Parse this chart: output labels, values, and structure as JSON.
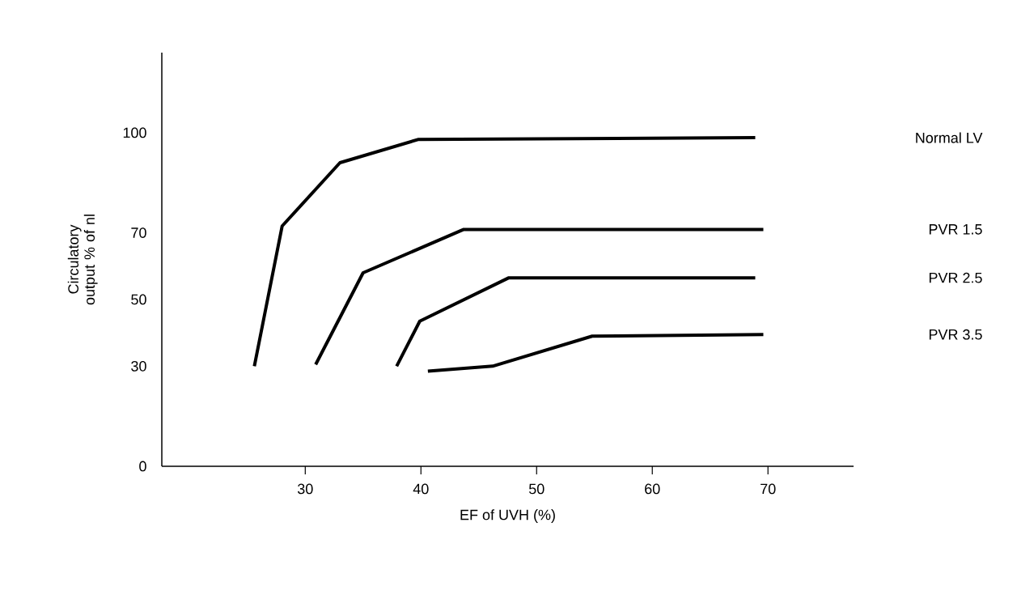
{
  "chart_data": {
    "type": "line",
    "xlabel": "EF of UVH (%)",
    "ylabel": "Circulatory output % of nl",
    "xlim": [
      17.6,
      77.4
    ],
    "ylim": [
      0,
      124
    ],
    "xticks": [
      30,
      40,
      50,
      60,
      70
    ],
    "yticks": [
      0,
      30,
      50,
      70,
      100
    ],
    "series": [
      {
        "name": "Normal LV",
        "color": "#000000",
        "x": [
          25.6,
          28,
          33,
          39.8,
          68.9
        ],
        "values": [
          30,
          72,
          91,
          98,
          98.5
        ]
      },
      {
        "name": "PVR 1.5",
        "color": "#000000",
        "x": [
          30.9,
          35,
          43.7,
          69.6
        ],
        "values": [
          30.5,
          58,
          71,
          71
        ]
      },
      {
        "name": "PVR 2.5",
        "color": "#000000",
        "x": [
          37.9,
          39.9,
          47.6,
          68.9
        ],
        "values": [
          30,
          43.5,
          56.5,
          56.5
        ]
      },
      {
        "name": "PVR 3.5",
        "color": "#000000",
        "x": [
          40.6,
          46.2,
          54.8,
          69.6
        ],
        "values": [
          28.5,
          30,
          39,
          39.5
        ]
      }
    ]
  }
}
